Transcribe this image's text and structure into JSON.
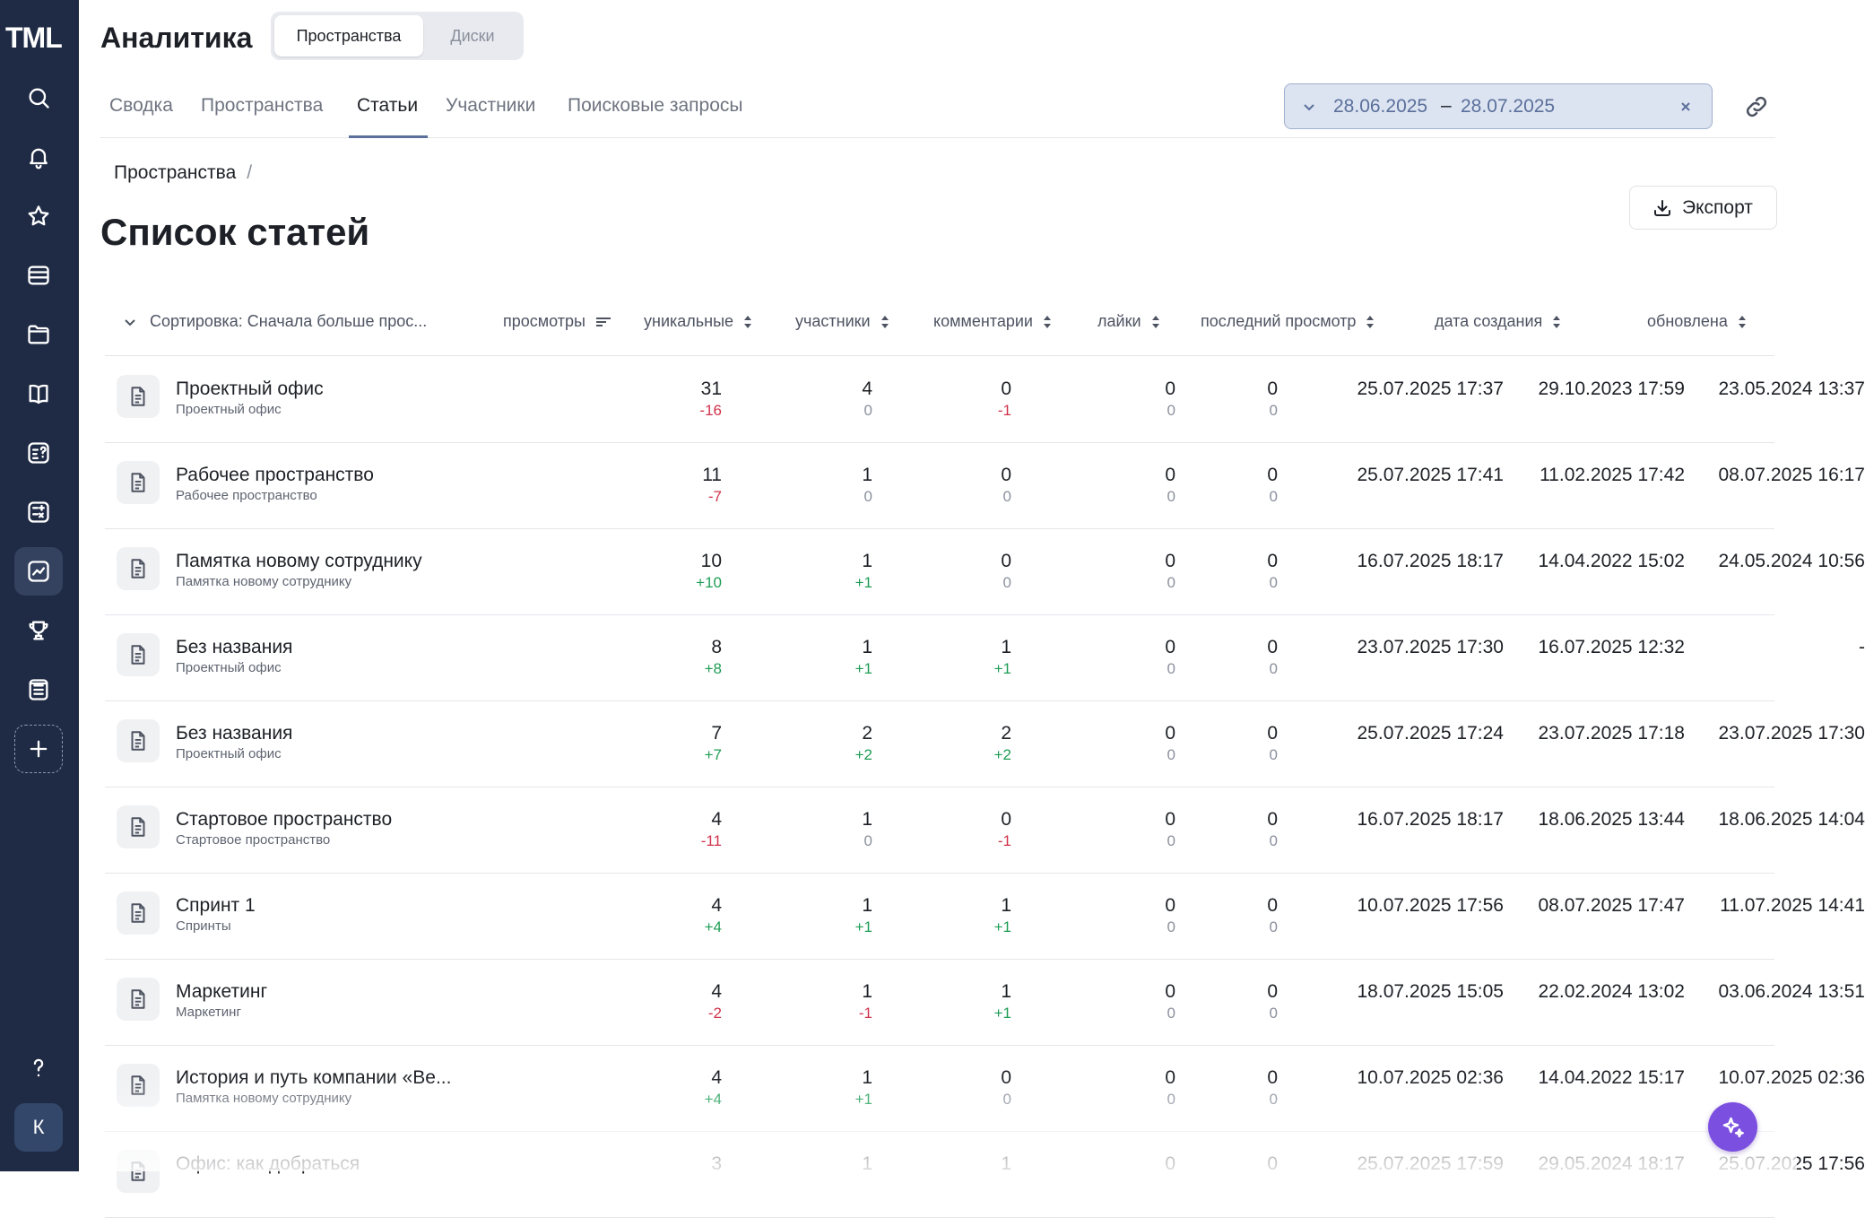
{
  "app": {
    "logo_text": "TML",
    "title": "Аналитика",
    "avatar_initial": "К"
  },
  "segment": {
    "active": "Пространства",
    "inactive": "Диски"
  },
  "tabs": [
    "Сводка",
    "Пространства",
    "Статьи",
    "Участники",
    "Поисковые запросы"
  ],
  "active_tab": "Статьи",
  "date_range": {
    "from": "28.06.2025",
    "separator": "–",
    "to": "28.07.2025"
  },
  "breadcrumb": {
    "parent": "Пространства",
    "separator": "/"
  },
  "page": {
    "title": "Список статей",
    "export_label": "Экспорт"
  },
  "table": {
    "sort_label": "Сортировка: Сначала больше прос...",
    "columns": {
      "views": "просмотры",
      "unique": "уникальные",
      "participants": "участники",
      "comments": "комментарии",
      "likes": "лайки",
      "last_view": "последний просмотр",
      "created": "дата создания",
      "updated": "обновлена"
    },
    "rows": [
      {
        "name": "Проектный офис",
        "space": "Проектный офис",
        "views": "31",
        "views_delta": "-16",
        "unique": "4",
        "unique_delta": "0",
        "participants": "0",
        "participants_delta": "-1",
        "comments": "0",
        "comments_delta": "0",
        "likes": "0",
        "likes_delta": "0",
        "last_view": "25.07.2025 17:37",
        "created": "29.10.2023 17:59",
        "updated": "23.05.2024 13:37"
      },
      {
        "name": "Рабочее пространство",
        "space": "Рабочее пространство",
        "views": "11",
        "views_delta": "-7",
        "unique": "1",
        "unique_delta": "0",
        "participants": "0",
        "participants_delta": "0",
        "comments": "0",
        "comments_delta": "0",
        "likes": "0",
        "likes_delta": "0",
        "last_view": "25.07.2025 17:41",
        "created": "11.02.2025 17:42",
        "updated": "08.07.2025 16:17"
      },
      {
        "name": "Памятка новому сотруднику",
        "space": "Памятка новому сотруднику",
        "views": "10",
        "views_delta": "+10",
        "unique": "1",
        "unique_delta": "+1",
        "participants": "0",
        "participants_delta": "0",
        "comments": "0",
        "comments_delta": "0",
        "likes": "0",
        "likes_delta": "0",
        "last_view": "16.07.2025 18:17",
        "created": "14.04.2022 15:02",
        "updated": "24.05.2024 10:56"
      },
      {
        "name": "Без названия",
        "space": "Проектный офис",
        "views": "8",
        "views_delta": "+8",
        "unique": "1",
        "unique_delta": "+1",
        "participants": "1",
        "participants_delta": "+1",
        "comments": "0",
        "comments_delta": "0",
        "likes": "0",
        "likes_delta": "0",
        "last_view": "23.07.2025 17:30",
        "created": "16.07.2025 12:32",
        "updated": "-"
      },
      {
        "name": "Без названия",
        "space": "Проектный офис",
        "views": "7",
        "views_delta": "+7",
        "unique": "2",
        "unique_delta": "+2",
        "participants": "2",
        "participants_delta": "+2",
        "comments": "0",
        "comments_delta": "0",
        "likes": "0",
        "likes_delta": "0",
        "last_view": "25.07.2025 17:24",
        "created": "23.07.2025 17:18",
        "updated": "23.07.2025 17:30"
      },
      {
        "name": "Стартовое пространство",
        "space": "Стартовое пространство",
        "views": "4",
        "views_delta": "-11",
        "unique": "1",
        "unique_delta": "0",
        "participants": "0",
        "participants_delta": "-1",
        "comments": "0",
        "comments_delta": "0",
        "likes": "0",
        "likes_delta": "0",
        "last_view": "16.07.2025 18:17",
        "created": "18.06.2025 13:44",
        "updated": "18.06.2025 14:04"
      },
      {
        "name": "Спринт 1",
        "space": "Спринты",
        "views": "4",
        "views_delta": "+4",
        "unique": "1",
        "unique_delta": "+1",
        "participants": "1",
        "participants_delta": "+1",
        "comments": "0",
        "comments_delta": "0",
        "likes": "0",
        "likes_delta": "0",
        "last_view": "10.07.2025 17:56",
        "created": "08.07.2025 17:47",
        "updated": "11.07.2025 14:41"
      },
      {
        "name": "Маркетинг",
        "space": "Маркетинг",
        "views": "4",
        "views_delta": "-2",
        "unique": "1",
        "unique_delta": "-1",
        "participants": "1",
        "participants_delta": "+1",
        "comments": "0",
        "comments_delta": "0",
        "likes": "0",
        "likes_delta": "0",
        "last_view": "18.07.2025 15:05",
        "created": "22.02.2024 13:02",
        "updated": "03.06.2024 13:51"
      },
      {
        "name": "История и путь компании «Ве...",
        "space": "Памятка новому сотруднику",
        "views": "4",
        "views_delta": "+4",
        "unique": "1",
        "unique_delta": "+1",
        "participants": "0",
        "participants_delta": "0",
        "comments": "0",
        "comments_delta": "0",
        "likes": "0",
        "likes_delta": "0",
        "last_view": "10.07.2025 02:36",
        "created": "14.04.2022 15:17",
        "updated": "10.07.2025 02:36"
      },
      {
        "name": "Офис: как добраться",
        "space": "",
        "views": "3",
        "views_delta": "",
        "unique": "1",
        "unique_delta": "",
        "participants": "1",
        "participants_delta": "",
        "comments": "0",
        "comments_delta": "",
        "likes": "0",
        "likes_delta": "",
        "last_view": "25.07.2025 17:59",
        "created": "29.05.2024 18:17",
        "updated": "25.07.2025 17:56"
      }
    ]
  },
  "sidebar_icons": [
    "search-icon",
    "bell-icon",
    "star-icon",
    "inbox-icon",
    "folder-icon",
    "book-icon",
    "quiz-icon",
    "calculator-icon",
    "analytics-icon",
    "trophy-icon",
    "list-icon",
    "plus-icon",
    "help-icon"
  ],
  "colors": {
    "sidebar": "#1f2b45",
    "accent": "#5a6f9b",
    "positive": "#1f9d55",
    "negative": "#d0334b",
    "ai_button": "#7b4fe0"
  }
}
